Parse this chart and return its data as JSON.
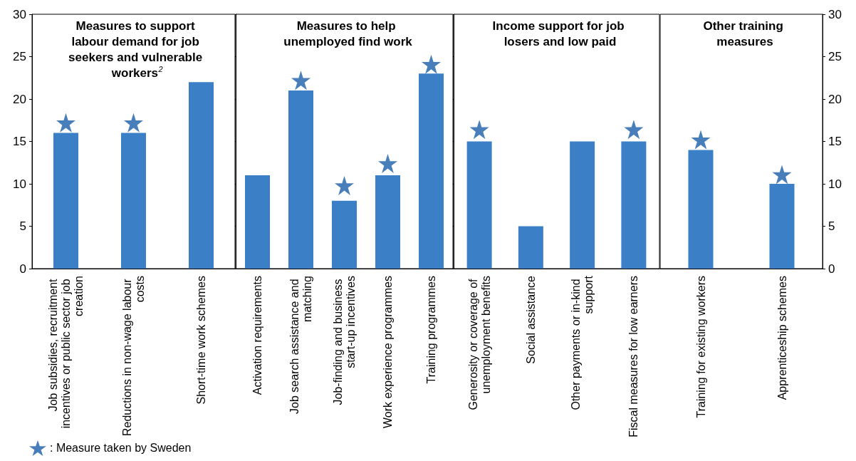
{
  "chart_data": [
    {
      "type": "bar",
      "title": "Measures to support labour demand for job seekers and vulnerable workers$^{2}$",
      "categories": [
        "Job subsidies, recruitment incentives or public sector job creation",
        "Reductions in non-wage labour costs",
        "Short-time work schemes"
      ],
      "series": [
        {
          "color": "#3b80c6",
          "values": [
            16,
            16,
            22
          ]
        },
        {
          "type": "scatter",
          "name": ": Measure taken by Sweden",
          "color": "#1a5ea8",
          "values": [
            17.2,
            17.2,
            null
          ]
        }
      ],
      "marker": "star",
      "ylim": [
        0,
        30
      ],
      "yticks": [
        0,
        5,
        10,
        15,
        20,
        25,
        30
      ],
      "legend": "bottom left"
    },
    {
      "type": "bar",
      "title": "Measures to help unemployed find work",
      "categories": [
        "Activation requirements",
        "Job search assistance and matching",
        "Job-finding and business start-up incentives",
        "Work experience programmes",
        "Training programmes"
      ],
      "series": [
        {
          "color": "#3b80c6",
          "values": [
            11,
            21,
            8,
            11,
            23
          ]
        },
        {
          "type": "scatter",
          "color": "#1a5ea8",
          "values": [
            null,
            22.2,
            9.8,
            12.4,
            24.1
          ]
        }
      ],
      "marker": "star",
      "ylim": [
        0,
        30
      ],
      "yticks": [
        0,
        5,
        10,
        15,
        20,
        25,
        30
      ],
      "tick_labels": "x"
    },
    {
      "type": "bar",
      "title": "Income support for job losers and low paid",
      "categories": [
        "Generosity or coverage of unemployment benefits",
        "Social assistance",
        "Other payments or in-kind support",
        "Fiscal measures for low earners"
      ],
      "series": [
        {
          "color": "#3b80c6",
          "values": [
            15,
            5,
            15,
            15
          ]
        },
        {
          "type": "scatter",
          "color": "#1a5ea8",
          "values": [
            16.4,
            null,
            null,
            16.4
          ]
        }
      ],
      "marker": "star",
      "ylim": [
        0,
        30
      ],
      "yticks": [
        0,
        5,
        10,
        15,
        20,
        25,
        30
      ],
      "tick_labels": "x"
    },
    {
      "type": "bar",
      "title": "Other training measures",
      "categories": [
        "Training for existing workers",
        "Apprenticeship schemes"
      ],
      "series": [
        {
          "color": "#3b80c6",
          "values": [
            14,
            10
          ],
          "axis": "y2"
        },
        {
          "type": "scatter",
          "color": "#1a5ea8",
          "values": [
            15.2,
            11.1
          ],
          "axis": "y2"
        }
      ],
      "marker": "star",
      "y2lim": [
        0,
        30
      ],
      "y2ticks": [
        0,
        5,
        10,
        15,
        20,
        25,
        30
      ]
    }
  ]
}
